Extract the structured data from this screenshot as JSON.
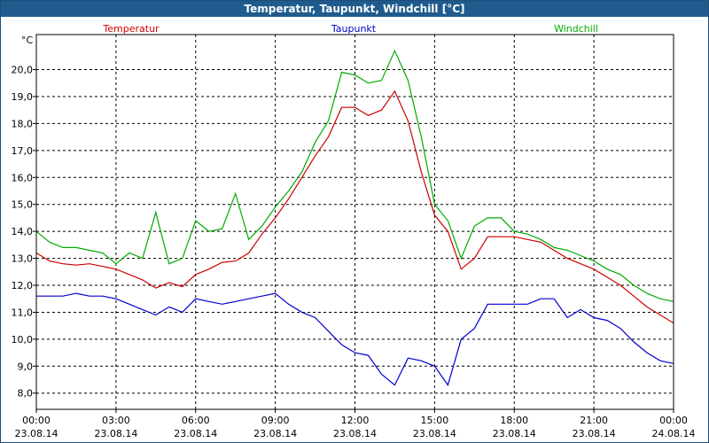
{
  "window": {
    "title": "Temperatur, Taupunkt, Windchill [°C]"
  },
  "chart_data": {
    "type": "line",
    "title": "Temperatur, Taupunkt, Windchill [°C]",
    "ylabel": "°C",
    "ylim": [
      7.4,
      21.3
    ],
    "yticks": [
      "8,0",
      "9,0",
      "10,0",
      "11,0",
      "12,0",
      "13,0",
      "14,0",
      "15,0",
      "16,0",
      "17,0",
      "18,0",
      "19,0",
      "20,0"
    ],
    "ytick_values": [
      8,
      9,
      10,
      11,
      12,
      13,
      14,
      15,
      16,
      17,
      18,
      19,
      20
    ],
    "xlim_hours": [
      0,
      24
    ],
    "xticks": [
      {
        "time": "00:00",
        "date": "23.08.14",
        "hour": 0
      },
      {
        "time": "03:00",
        "date": "23.08.14",
        "hour": 3
      },
      {
        "time": "06:00",
        "date": "23.08.14",
        "hour": 6
      },
      {
        "time": "09:00",
        "date": "23.08.14",
        "hour": 9
      },
      {
        "time": "12:00",
        "date": "23.08.14",
        "hour": 12
      },
      {
        "time": "15:00",
        "date": "23.08.14",
        "hour": 15
      },
      {
        "time": "18:00",
        "date": "23.08.14",
        "hour": 18
      },
      {
        "time": "21:00",
        "date": "23.08.14",
        "hour": 21
      },
      {
        "time": "00:00",
        "date": "24.08.14",
        "hour": 24
      }
    ],
    "grid": true,
    "legend_position": "top",
    "series": [
      {
        "name": "Temperatur",
        "color": "#cc0000",
        "x": [
          0,
          0.5,
          1,
          1.5,
          2,
          2.5,
          3,
          3.5,
          4,
          4.5,
          5,
          5.5,
          6,
          6.5,
          7,
          7.5,
          8,
          8.5,
          9,
          9.5,
          10,
          10.5,
          11,
          11.5,
          12,
          12.5,
          13,
          13.5,
          14,
          14.5,
          15,
          15.5,
          16,
          16.5,
          17,
          17.5,
          18,
          18.5,
          19,
          19.5,
          20,
          20.5,
          21,
          21.5,
          22,
          22.5,
          23,
          23.5,
          24
        ],
        "values": [
          13.2,
          12.9,
          12.8,
          12.75,
          12.8,
          12.7,
          12.6,
          12.4,
          12.2,
          11.9,
          12.1,
          11.95,
          12.4,
          12.6,
          12.85,
          12.9,
          13.2,
          13.9,
          14.5,
          15.2,
          16,
          16.8,
          17.5,
          18.6,
          18.6,
          18.3,
          18.5,
          19.2,
          18.1,
          16.2,
          14.6,
          14,
          12.6,
          13,
          13.8,
          13.8,
          13.8,
          13.7,
          13.6,
          13.3,
          13,
          12.8,
          12.6,
          12.3,
          12,
          11.6,
          11.2,
          10.9,
          10.6
        ]
      },
      {
        "name": "Taupunkt",
        "color": "#0000cc",
        "x": [
          0,
          0.5,
          1,
          1.5,
          2,
          2.5,
          3,
          3.5,
          4,
          4.5,
          5,
          5.5,
          6,
          6.5,
          7,
          7.5,
          8,
          8.5,
          9,
          9.5,
          10,
          10.5,
          11,
          11.5,
          12,
          12.5,
          13,
          13.5,
          14,
          14.5,
          15,
          15.5,
          16,
          16.5,
          17,
          17.5,
          18,
          18.5,
          19,
          19.5,
          20,
          20.5,
          21,
          21.5,
          22,
          22.5,
          23,
          23.5,
          24
        ],
        "values": [
          11.6,
          11.6,
          11.6,
          11.7,
          11.6,
          11.6,
          11.5,
          11.3,
          11.1,
          10.9,
          11.2,
          11,
          11.5,
          11.4,
          11.3,
          11.4,
          11.5,
          11.6,
          11.7,
          11.3,
          11,
          10.8,
          10.3,
          9.8,
          9.5,
          9.4,
          8.7,
          8.3,
          9.3,
          9.2,
          9,
          8.3,
          10,
          10.4,
          11.3,
          11.3,
          11.3,
          11.3,
          11.5,
          11.5,
          10.8,
          11.1,
          10.8,
          10.7,
          10.4,
          9.9,
          9.5,
          9.2,
          9.1
        ]
      },
      {
        "name": "Windchill",
        "color": "#00aa00",
        "x": [
          0,
          0.5,
          1,
          1.5,
          2,
          2.5,
          3,
          3.5,
          4,
          4.5,
          5,
          5.5,
          6,
          6.5,
          7,
          7.5,
          8,
          8.5,
          9,
          9.5,
          10,
          10.5,
          11,
          11.5,
          12,
          12.5,
          13,
          13.5,
          14,
          14.5,
          15,
          15.5,
          16,
          16.5,
          17,
          17.5,
          18,
          18.5,
          19,
          19.5,
          20,
          20.5,
          21,
          21.5,
          22,
          22.5,
          23,
          23.5,
          24
        ],
        "values": [
          14,
          13.6,
          13.4,
          13.4,
          13.3,
          13.2,
          12.8,
          13.2,
          13.0,
          14.7,
          12.8,
          13.0,
          14.4,
          14,
          14.1,
          15.4,
          13.7,
          14.2,
          14.9,
          15.5,
          16.2,
          17.3,
          18.1,
          19.9,
          19.8,
          19.5,
          19.6,
          20.7,
          19.6,
          17.5,
          15,
          14.4,
          13,
          14.2,
          14.5,
          14.5,
          14.0,
          13.9,
          13.7,
          13.4,
          13.3,
          13.1,
          12.9,
          12.6,
          12.4,
          12.0,
          11.7,
          11.5,
          11.4
        ]
      }
    ]
  }
}
